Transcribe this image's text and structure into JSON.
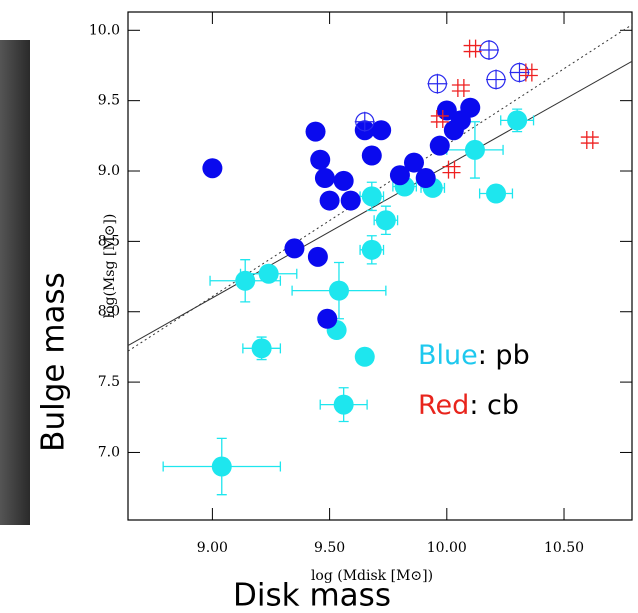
{
  "chart_data": {
    "type": "scatter",
    "y_label": "log(Msg [M⊙])",
    "x_label": "log (Mdisk [M⊙])",
    "big_y_label": "Bulge mass",
    "big_x_label": "Disk mass",
    "annotations": [
      [
        {
          "text": "Blue",
          "color": "#1ec8ee"
        },
        {
          "text": ": pb",
          "color": "#000000"
        }
      ],
      [
        {
          "text": "Red",
          "color": "#e8241c"
        },
        {
          "text": ": cb",
          "color": "#000000"
        }
      ]
    ],
    "xlim": [
      8.64,
      10.79
    ],
    "ylim": [
      6.52,
      10.13
    ],
    "xticks": [
      {
        "value": 9,
        "label": "9.00"
      },
      {
        "value": 9.5,
        "label": "9.50"
      },
      {
        "value": 10,
        "label": "10.00"
      },
      {
        "value": 10.5,
        "label": "10.50"
      }
    ],
    "yticks": [
      {
        "value": 7,
        "label": "7.0"
      },
      {
        "value": 7.5,
        "label": "7.5"
      },
      {
        "value": 8,
        "label": "8.0"
      },
      {
        "value": 8.5,
        "label": "8.5"
      },
      {
        "value": 9,
        "label": "9.0"
      },
      {
        "value": 9.5,
        "label": "9.5"
      },
      {
        "value": 10,
        "label": "10.0"
      }
    ],
    "lines": [
      {
        "x": [
          8.64,
          10.79
        ],
        "y": [
          7.76,
          9.78
        ],
        "style": "solid"
      },
      {
        "x": [
          8.64,
          10.79
        ],
        "y": [
          7.72,
          10.04
        ],
        "style": "dotted"
      }
    ],
    "series": [
      {
        "color": "#1ee6ee",
        "marker": "filled",
        "x": [
          9.04,
          9.56,
          9.21,
          9.65,
          9.53,
          9.14,
          9.24,
          9.54,
          9.68,
          9.74,
          9.68,
          9.82,
          9.94,
          10.21,
          10.12,
          10.3
        ],
        "y": [
          6.9,
          7.34,
          7.74,
          7.68,
          7.87,
          8.22,
          8.27,
          8.15,
          8.44,
          8.65,
          8.82,
          8.89,
          8.88,
          8.84,
          9.15,
          9.36
        ],
        "xerr": [
          0.25,
          0.1,
          0.08,
          0.03,
          0.03,
          0.15,
          0.12,
          0.2,
          0.05,
          0.05,
          0.05,
          0.05,
          0.05,
          0.07,
          0.12,
          0.07
        ],
        "yerr": [
          0.2,
          0.12,
          0.08,
          0.05,
          0.05,
          0.15,
          0.05,
          0.2,
          0.1,
          0.1,
          0.1,
          0.05,
          0.05,
          0.05,
          0.2,
          0.08
        ]
      },
      {
        "color": "#0a0aee",
        "marker": "filled",
        "x": [
          9.0,
          9.35,
          9.45,
          9.49,
          9.44,
          9.46,
          9.48,
          9.5,
          9.56,
          9.59,
          9.65,
          9.68,
          9.72,
          9.8,
          9.86,
          9.91,
          9.97,
          10.0,
          10.03,
          10.06,
          10.1
        ],
        "y": [
          9.02,
          8.45,
          8.39,
          7.95,
          9.28,
          9.08,
          8.95,
          8.79,
          8.93,
          8.79,
          9.29,
          9.11,
          9.29,
          8.97,
          9.06,
          8.95,
          9.18,
          9.43,
          9.29,
          9.36,
          9.45
        ]
      },
      {
        "color": "#2a2aee",
        "marker": "open-cross",
        "x": [
          9.96,
          9.65,
          10.18,
          10.21,
          10.31
        ],
        "y": [
          9.62,
          9.35,
          9.86,
          9.65,
          9.7
        ]
      },
      {
        "color": "#ee2020",
        "marker": "hash",
        "x": [
          10.11,
          10.06,
          10.35,
          10.61,
          10.02,
          9.97
        ],
        "y": [
          9.87,
          9.59,
          9.7,
          9.22,
          9.01,
          9.37
        ]
      }
    ]
  }
}
